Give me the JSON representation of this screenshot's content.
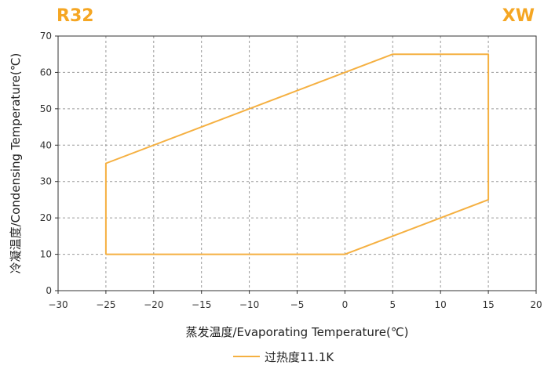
{
  "header": {
    "refrigerant": "R32",
    "model": "XW"
  },
  "chart_data": {
    "type": "line",
    "title": "",
    "xlabel": "蒸发温度/Evaporating Temperature(℃)",
    "ylabel": "冷凝温度/Condensing Temperature(℃)",
    "xlim": [
      -30,
      20
    ],
    "ylim": [
      0,
      70
    ],
    "xticks": [
      -30,
      -25,
      -20,
      -15,
      -10,
      -5,
      0,
      5,
      10,
      15,
      20
    ],
    "yticks": [
      0,
      10,
      20,
      30,
      40,
      50,
      60,
      70
    ],
    "grid": true,
    "legend_position": "bottom-center",
    "series": [
      {
        "name": "过热度11.1K",
        "color": "#f5b041",
        "closed": true,
        "x": [
          -25,
          0,
          15,
          15,
          5,
          -25,
          -25
        ],
        "y": [
          10,
          10,
          25,
          65,
          65,
          35,
          10
        ]
      }
    ]
  }
}
